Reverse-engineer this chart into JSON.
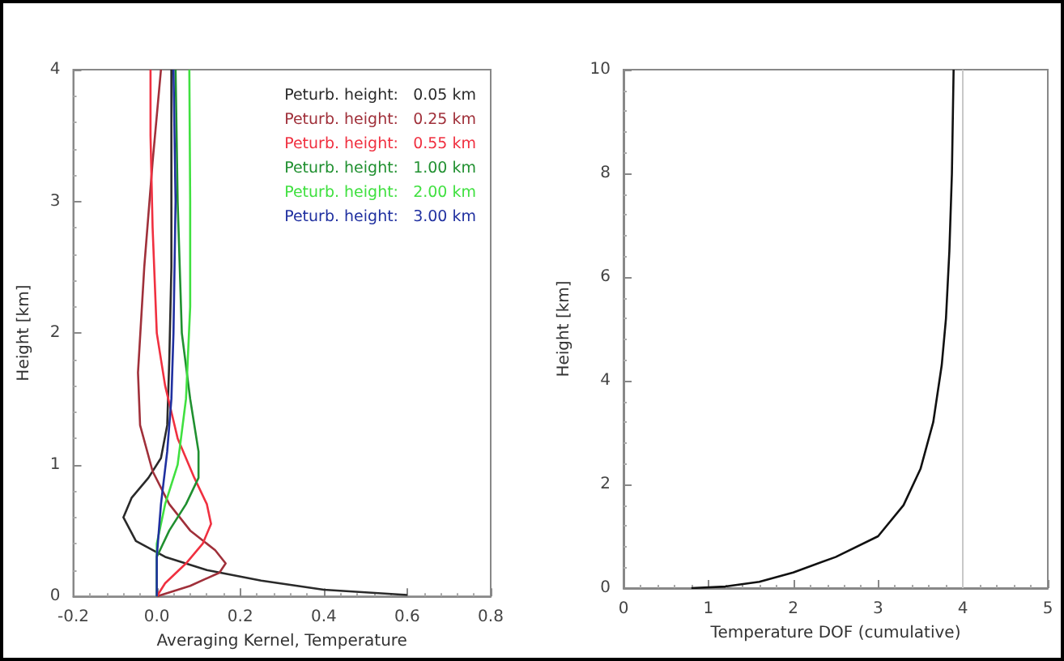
{
  "chart_data": [
    {
      "type": "line",
      "xlabel": "Averaging Kernel, Temperature",
      "ylabel": "Height [km]",
      "xlim": [
        -0.2,
        0.8
      ],
      "ylim": [
        0,
        4
      ],
      "xticks": [
        {
          "value": -0.2,
          "label": "-0.2"
        },
        {
          "value": 0,
          "label": "0.0"
        },
        {
          "value": 0.2,
          "label": "0.2"
        },
        {
          "value": 0.4,
          "label": "0.4"
        },
        {
          "value": 0.6,
          "label": "0.6"
        },
        {
          "value": 0.8,
          "label": "0.8"
        }
      ],
      "yticks": [
        0,
        1,
        2,
        3,
        4
      ],
      "legend": "top right",
      "marker": "none",
      "grid": false,
      "series": [
        {
          "name": "Peturb. height:   0.05 km",
          "color": "#2a2a2a",
          "x": [
            0.6,
            0.4,
            0.25,
            0.12,
            0.02,
            -0.05,
            -0.08,
            -0.06,
            -0.02,
            0.01,
            0.025,
            0.03,
            0.035,
            0.035
          ],
          "values": [
            0.01,
            0.05,
            0.12,
            0.2,
            0.3,
            0.42,
            0.6,
            0.75,
            0.9,
            1.05,
            1.3,
            1.8,
            2.5,
            4
          ]
        },
        {
          "name": "Peturb. height:   0.25 km",
          "color": "#a0303a",
          "x": [
            0,
            0.08,
            0.15,
            0.165,
            0.14,
            0.08,
            0.03,
            -0.01,
            -0.04,
            -0.045,
            -0.03,
            -0.01,
            0.01
          ],
          "values": [
            0,
            0.08,
            0.18,
            0.25,
            0.35,
            0.5,
            0.7,
            0.95,
            1.3,
            1.7,
            2.5,
            3.3,
            4
          ]
        },
        {
          "name": "Peturb. height:   0.55 km",
          "color": "#f03040",
          "x": [
            0,
            0.02,
            0.07,
            0.11,
            0.13,
            0.12,
            0.09,
            0.05,
            0.02,
            0,
            -0.01,
            -0.015,
            -0.015
          ],
          "values": [
            0,
            0.1,
            0.25,
            0.4,
            0.55,
            0.7,
            0.9,
            1.2,
            1.6,
            2,
            2.8,
            3.5,
            4
          ]
        },
        {
          "name": "Peturb. height:   1.00 km",
          "color": "#209030",
          "x": [
            0,
            0,
            0.03,
            0.07,
            0.1,
            0.1,
            0.08,
            0.06,
            0.05,
            0.045
          ],
          "values": [
            0,
            0.3,
            0.5,
            0.7,
            0.9,
            1.1,
            1.5,
            2,
            3,
            4
          ]
        },
        {
          "name": "Peturb. height:   2.00 km",
          "color": "#40e040",
          "x": [
            0,
            0,
            0.02,
            0.05,
            0.07,
            0.08,
            0.08,
            0.078
          ],
          "values": [
            0,
            0.4,
            0.7,
            1,
            1.5,
            2.2,
            3,
            4
          ]
        },
        {
          "name": "Peturb. height:   3.00 km",
          "color": "#2030a0",
          "x": [
            0,
            0,
            0.01,
            0.025,
            0.035,
            0.04,
            0.045,
            0.04
          ],
          "values": [
            0,
            0.3,
            0.7,
            1.1,
            1.5,
            2,
            3,
            4
          ]
        }
      ]
    },
    {
      "type": "line",
      "xlabel": "Temperature DOF (cumulative)",
      "ylabel": "Height [km]",
      "xlim": [
        0,
        5
      ],
      "ylim": [
        0,
        10
      ],
      "xticks": [
        0,
        1,
        2,
        3,
        4,
        5
      ],
      "yticks": [
        0,
        2,
        4,
        6,
        8,
        10
      ],
      "marker": "none",
      "grid": false,
      "ref_lines": [
        {
          "axis": "x",
          "value": 4,
          "color": "#c8c8c8"
        }
      ],
      "series": [
        {
          "color": "#111111",
          "x": [
            0.8,
            1.2,
            1.6,
            2.0,
            2.5,
            3.0,
            3.3,
            3.5,
            3.65,
            3.75,
            3.8,
            3.84,
            3.87,
            3.89
          ],
          "values": [
            0,
            0.03,
            0.12,
            0.3,
            0.6,
            1.0,
            1.6,
            2.3,
            3.2,
            4.3,
            5.2,
            6.5,
            8,
            10
          ]
        }
      ]
    }
  ]
}
